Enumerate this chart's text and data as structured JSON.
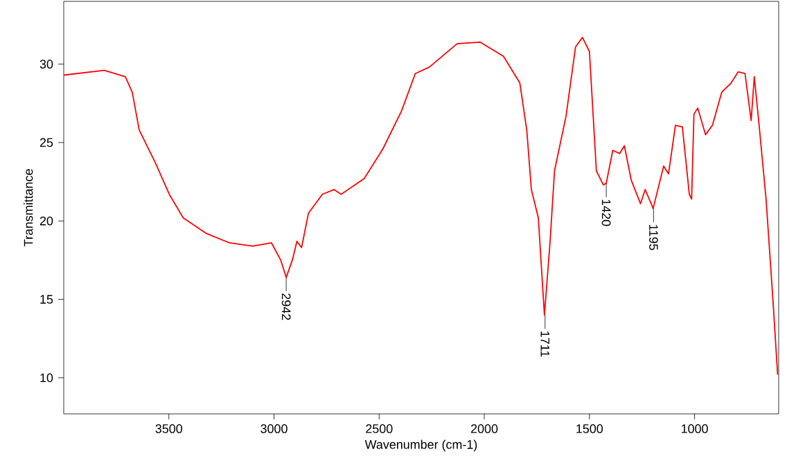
{
  "chart_data": {
    "type": "line",
    "xlabel": "Wavenumber (cm-1)",
    "ylabel": "Transmittance",
    "xlim": [
      4000,
      600
    ],
    "ylim": [
      7.7,
      34
    ],
    "xticks": [
      3500,
      3000,
      2500,
      2000,
      1500,
      1000
    ],
    "yticks": [
      10,
      15,
      20,
      25,
      30
    ],
    "grid": false,
    "marker": "none",
    "line_style": "solid",
    "series": [
      {
        "color": "#ff0000",
        "x": [
          4000,
          3807,
          3707,
          3674,
          3641,
          3564,
          3498,
          3432,
          3321,
          3211,
          3101,
          3012,
          2968,
          2942,
          2913,
          2891,
          2869,
          2836,
          2770,
          2714,
          2681,
          2571,
          2482,
          2394,
          2328,
          2262,
          2129,
          2019,
          1909,
          1831,
          1798,
          1776,
          1743,
          1714,
          1687,
          1666,
          1611,
          1566,
          1533,
          1500,
          1467,
          1434,
          1420,
          1389,
          1356,
          1334,
          1301,
          1257,
          1235,
          1197,
          1147,
          1124,
          1091,
          1058,
          1025,
          1014,
          1003,
          985,
          948,
          915,
          871,
          826,
          793,
          760,
          731,
          716,
          693,
          660,
          627,
          605
        ],
        "values": [
          29.3,
          29.6,
          29.2,
          28.2,
          25.8,
          23.7,
          21.7,
          20.2,
          19.2,
          18.6,
          18.4,
          18.6,
          17.5,
          16.4,
          17.5,
          18.7,
          18.3,
          20.5,
          21.7,
          22.0,
          21.7,
          22.7,
          24.6,
          27.0,
          29.4,
          29.8,
          31.3,
          31.4,
          30.5,
          28.8,
          25.8,
          22.0,
          20.2,
          14.0,
          18.7,
          23.2,
          26.7,
          31.1,
          31.7,
          30.8,
          23.2,
          22.3,
          22.4,
          24.5,
          24.3,
          24.8,
          22.6,
          21.1,
          22.0,
          20.8,
          23.5,
          23.0,
          26.1,
          26.0,
          21.7,
          21.4,
          26.8,
          27.2,
          25.5,
          26.1,
          28.2,
          28.8,
          29.5,
          29.4,
          26.4,
          29.2,
          26.1,
          21.4,
          14.9,
          10.2
        ]
      }
    ],
    "annotations": [
      {
        "text": "2942",
        "x": 2942,
        "y": 16.4
      },
      {
        "text": "1711",
        "x": 1711,
        "y": 14.0
      },
      {
        "text": "1420",
        "x": 1420,
        "y": 22.4
      },
      {
        "text": "1195",
        "x": 1195,
        "y": 20.8
      }
    ]
  }
}
